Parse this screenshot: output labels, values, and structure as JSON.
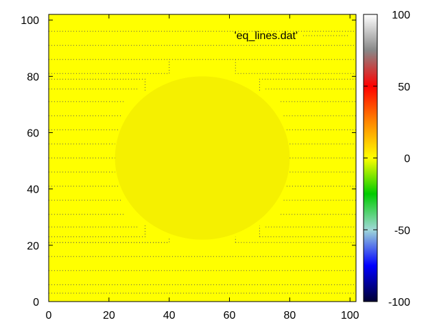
{
  "chart_data": {
    "type": "heatmap",
    "title": "",
    "xlabel": "",
    "ylabel": "",
    "xlim": [
      0,
      102
    ],
    "ylim": [
      0,
      102
    ],
    "x_ticks": [
      0,
      20,
      40,
      60,
      80,
      100
    ],
    "x_tick_labels": [
      "0",
      "20",
      "40",
      "60",
      "80",
      "100"
    ],
    "y_ticks": [
      0,
      20,
      40,
      60,
      80,
      100
    ],
    "y_tick_labels": [
      "0",
      "20",
      "40",
      "60",
      "80",
      "100"
    ],
    "background_color": "#ffff00",
    "inner_region_color": "#f5f000",
    "colorbar": {
      "range": [
        -100,
        100
      ],
      "ticks": [
        -100,
        -50,
        0,
        50,
        100
      ],
      "tick_labels": [
        "-100",
        "-50",
        "0",
        "50",
        "100"
      ],
      "stops": [
        {
          "value": -100,
          "color": "#000033"
        },
        {
          "value": -75,
          "color": "#0000ff"
        },
        {
          "value": -50,
          "color": "#a0d8d8"
        },
        {
          "value": -25,
          "color": "#00cc00"
        },
        {
          "value": 0,
          "color": "#ffff00"
        },
        {
          "value": 25,
          "color": "#ff8800"
        },
        {
          "value": 50,
          "color": "#ff0000"
        },
        {
          "value": 75,
          "color": "#888888"
        },
        {
          "value": 100,
          "color": "#ffffff"
        }
      ]
    },
    "series": [
      {
        "name": "'eq_lines.dat'",
        "color": "#555555",
        "style": "dotted",
        "lines": [
          [
            [
              0,
              3
            ],
            [
              102,
              3
            ]
          ],
          [
            [
              0,
              6
            ],
            [
              102,
              6
            ]
          ],
          [
            [
              0,
              11
            ],
            [
              102,
              11
            ]
          ],
          [
            [
              0,
              16
            ],
            [
              102,
              16
            ]
          ],
          [
            [
              0,
              21
            ],
            [
              40,
              21
            ],
            [
              40,
              23
            ]
          ],
          [
            [
              0,
              21
            ],
            [
              40,
              21
            ]
          ],
          [
            [
              0,
              23
            ],
            [
              32,
              23
            ],
            [
              32,
              27
            ]
          ],
          [
            [
              0,
              26.5
            ],
            [
              30,
              26.5
            ]
          ],
          [
            [
              62,
              21
            ],
            [
              102,
              21
            ]
          ],
          [
            [
              62,
              21
            ],
            [
              62,
              23
            ]
          ],
          [
            [
              70,
              23
            ],
            [
              102,
              23
            ]
          ],
          [
            [
              70,
              23
            ],
            [
              70,
              27
            ]
          ],
          [
            [
              72,
              26.5
            ],
            [
              102,
              26.5
            ]
          ],
          [
            [
              0,
              31
            ],
            [
              25,
              31
            ]
          ],
          [
            [
              0,
              36
            ],
            [
              24,
              36
            ]
          ],
          [
            [
              0,
              41
            ],
            [
              23,
              41
            ]
          ],
          [
            [
              0,
              46
            ],
            [
              22,
              46
            ]
          ],
          [
            [
              0,
              51
            ],
            [
              22,
              51
            ]
          ],
          [
            [
              0,
              56
            ],
            [
              22,
              56
            ]
          ],
          [
            [
              0,
              61
            ],
            [
              23,
              61
            ]
          ],
          [
            [
              0,
              66
            ],
            [
              24,
              66
            ]
          ],
          [
            [
              0,
              71
            ],
            [
              25,
              71
            ]
          ],
          [
            [
              77,
              31
            ],
            [
              102,
              31
            ]
          ],
          [
            [
              78,
              36
            ],
            [
              102,
              36
            ]
          ],
          [
            [
              79,
              41
            ],
            [
              102,
              41
            ]
          ],
          [
            [
              80,
              46
            ],
            [
              102,
              46
            ]
          ],
          [
            [
              80,
              51
            ],
            [
              102,
              51
            ]
          ],
          [
            [
              80,
              56
            ],
            [
              102,
              56
            ]
          ],
          [
            [
              79,
              61
            ],
            [
              102,
              61
            ]
          ],
          [
            [
              78,
              66
            ],
            [
              102,
              66
            ]
          ],
          [
            [
              77,
              71
            ],
            [
              102,
              71
            ]
          ],
          [
            [
              0,
              75.5
            ],
            [
              30,
              75.5
            ]
          ],
          [
            [
              0,
              79
            ],
            [
              32,
              79
            ],
            [
              32,
              75
            ]
          ],
          [
            [
              0,
              81
            ],
            [
              40,
              81
            ],
            [
              40,
              86
            ]
          ],
          [
            [
              62,
              86
            ],
            [
              62,
              81
            ],
            [
              102,
              81
            ]
          ],
          [
            [
              72,
              75.5
            ],
            [
              102,
              75.5
            ]
          ],
          [
            [
              70,
              75
            ],
            [
              70,
              79
            ],
            [
              102,
              79
            ]
          ],
          [
            [
              0,
              86
            ],
            [
              102,
              86
            ]
          ],
          [
            [
              0,
              91
            ],
            [
              102,
              91
            ]
          ],
          [
            [
              0,
              96
            ],
            [
              102,
              96
            ]
          ]
        ]
      }
    ],
    "regions": [
      {
        "shape": "ellipse",
        "cx": 51,
        "cy": 51,
        "rx": 29,
        "ry": 29,
        "label": ""
      }
    ]
  }
}
